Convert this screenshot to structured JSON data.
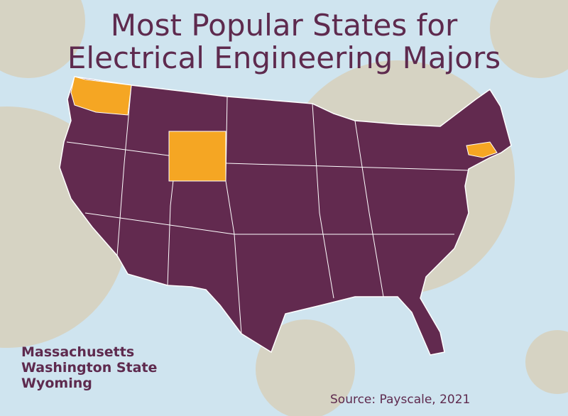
{
  "header": {
    "title_lines": [
      "Most Popular States for",
      "Electrical Engineering Majors"
    ]
  },
  "states": [
    "Massachusetts",
    "Washington State",
    "Wyoming"
  ],
  "source": "Source: Payscale, 2021"
}
